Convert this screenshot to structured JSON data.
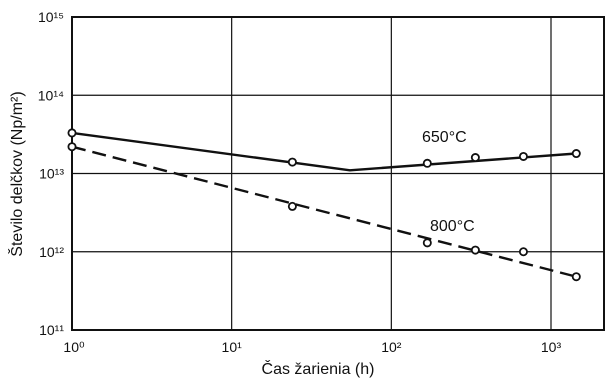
{
  "chart_data": {
    "type": "line",
    "title": "",
    "xlabel": "Čas žarienia (h)",
    "ylabel": "Število delčkov (Np/m²)",
    "xscale": "log",
    "yscale": "log",
    "xlim": [
      1,
      4000
    ],
    "ylim": [
      100000000000.0,
      1000000000000000.0
    ],
    "grid": true,
    "x_tick_labels": [
      "10⁰",
      "10¹",
      "10²",
      "10³"
    ],
    "y_tick_labels": [
      "10¹¹",
      "10¹²",
      "10¹³",
      "10¹⁴",
      "10¹⁵"
    ],
    "series": [
      {
        "name": "650°C",
        "line_style": "solid",
        "points": [
          {
            "x": 1,
            "y": 33000000000000.0
          },
          {
            "x": 24,
            "y": 14000000000000.0
          },
          {
            "x": 168,
            "y": 13500000000000.0
          },
          {
            "x": 336,
            "y": 16000000000000.0
          },
          {
            "x": 672,
            "y": 16500000000000.0
          },
          {
            "x": 1440,
            "y": 18000000000000.0
          }
        ],
        "fit_line": [
          {
            "x": 1,
            "y": 33000000000000.0
          },
          {
            "x": 55,
            "y": 11000000000000.0
          },
          {
            "x": 1440,
            "y": 18000000000000.0
          }
        ]
      },
      {
        "name": "800°C",
        "line_style": "dashed",
        "points": [
          {
            "x": 1,
            "y": 22000000000000.0
          },
          {
            "x": 24,
            "y": 3800000000000.0
          },
          {
            "x": 168,
            "y": 1300000000000.0
          },
          {
            "x": 336,
            "y": 1050000000000.0
          },
          {
            "x": 672,
            "y": 1000000000000.0
          },
          {
            "x": 1440,
            "y": 480000000000.0
          }
        ],
        "fit_line": [
          {
            "x": 1,
            "y": 22000000000000.0
          },
          {
            "x": 1440,
            "y": 480000000000.0
          }
        ]
      }
    ]
  }
}
